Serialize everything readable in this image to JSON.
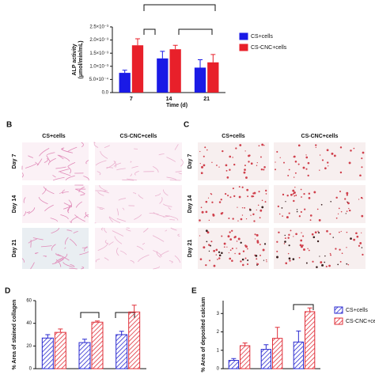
{
  "chart_data": [
    {
      "type": "bar",
      "categories": [
        "7",
        "14",
        "21"
      ],
      "xlabel": "Time (d)",
      "ylabel": [
        "ALP activity",
        "(μmol/min/mL)"
      ],
      "ylim": [
        0,
        0.0025
      ],
      "yticks": [
        {
          "value": 0,
          "label": "0.0"
        },
        {
          "value": 0.0005,
          "label": "5.0×10⁻⁴"
        },
        {
          "value": 0.001,
          "label": "1.0×10⁻³"
        },
        {
          "value": 0.0015,
          "label": "1.5×10⁻³"
        },
        {
          "value": 0.002,
          "label": "2.0×10⁻³"
        },
        {
          "value": 0.0025,
          "label": "2.5×10⁻³"
        }
      ],
      "series": [
        {
          "name": "CS+cells",
          "color": "#1a1ae6",
          "values": [
            0.00075,
            0.0013,
            0.00095
          ],
          "errors": [
            0.0001,
            0.00027,
            0.0003
          ]
        },
        {
          "name": "CS-CNC+cells",
          "color": "#e8202a",
          "values": [
            0.0018,
            0.00165,
            0.00115
          ],
          "errors": [
            0.00025,
            0.00015,
            0.0003
          ]
        }
      ],
      "hatch": false,
      "legend": "right"
    },
    {
      "type": "bar",
      "panel_label": "D",
      "categories": [
        null,
        null,
        null
      ],
      "ylabel": [
        "% Area of stained collagen"
      ],
      "ylim": [
        0,
        60
      ],
      "yticks": [
        0,
        20,
        40,
        60
      ],
      "series": [
        {
          "color": "#2a2ad0",
          "values": [
            27,
            23,
            30
          ],
          "errors": [
            3,
            3,
            3
          ]
        },
        {
          "color": "#e0303a",
          "values": [
            32,
            41,
            50
          ],
          "errors": [
            3,
            1,
            6
          ]
        }
      ],
      "hatch": true
    },
    {
      "type": "bar",
      "panel_label": "E",
      "categories": [
        null,
        null,
        null
      ],
      "ylabel": [
        "% Area of deposited calcium"
      ],
      "ylim": [
        0,
        3.7
      ],
      "yticks": [
        0,
        1,
        2,
        3
      ],
      "series": [
        {
          "name": "CS+cells",
          "color": "#2a2ad0",
          "values": [
            0.45,
            1.05,
            1.45
          ],
          "errors": [
            0.1,
            0.25,
            0.6
          ]
        },
        {
          "name": "CS-CNC+cells",
          "color": "#e0303a",
          "values": [
            1.25,
            1.65,
            3.1
          ],
          "errors": [
            0.15,
            0.6,
            0.2
          ]
        }
      ],
      "hatch": true,
      "legend": "right"
    }
  ],
  "image_panels": [
    {
      "label": "B",
      "columns": [
        "CS+cells",
        "CS-CNC+cells"
      ],
      "rows": [
        "Day 7",
        "Day 14",
        "Day 21"
      ]
    },
    {
      "label": "C",
      "columns": [
        "CS+cells",
        "CS-CNC+cells"
      ],
      "rows": [
        "Day 7",
        "Day 14",
        "Day 21"
      ]
    }
  ]
}
